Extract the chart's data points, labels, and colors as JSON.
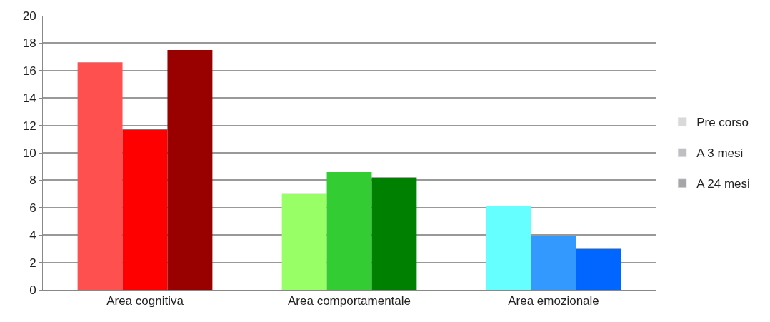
{
  "chart_data": {
    "type": "bar",
    "categories": [
      "Area cognitiva",
      "Area comportamentale",
      "Area emozionale"
    ],
    "series": [
      {
        "name": "Pre corso",
        "color": "#d9d9d9",
        "colors": [
          "#ff5050",
          "#99ff66",
          "#66ffff"
        ],
        "values": [
          16.6,
          7.0,
          6.1
        ]
      },
      {
        "name": "A 3 mesi",
        "color": "#bfbfbf",
        "colors": [
          "#ff0000",
          "#33cc33",
          "#3399ff"
        ],
        "values": [
          11.7,
          8.6,
          3.9
        ]
      },
      {
        "name": "A 24 mesi",
        "color": "#a6a6a6",
        "colors": [
          "#990000",
          "#008000",
          "#0066ff"
        ],
        "values": [
          17.5,
          8.2,
          3.0
        ]
      }
    ],
    "ylim": [
      0,
      20
    ],
    "yticks": [
      0,
      2,
      4,
      6,
      8,
      10,
      12,
      14,
      16,
      18,
      20
    ],
    "grid": "y",
    "legend": "right"
  }
}
